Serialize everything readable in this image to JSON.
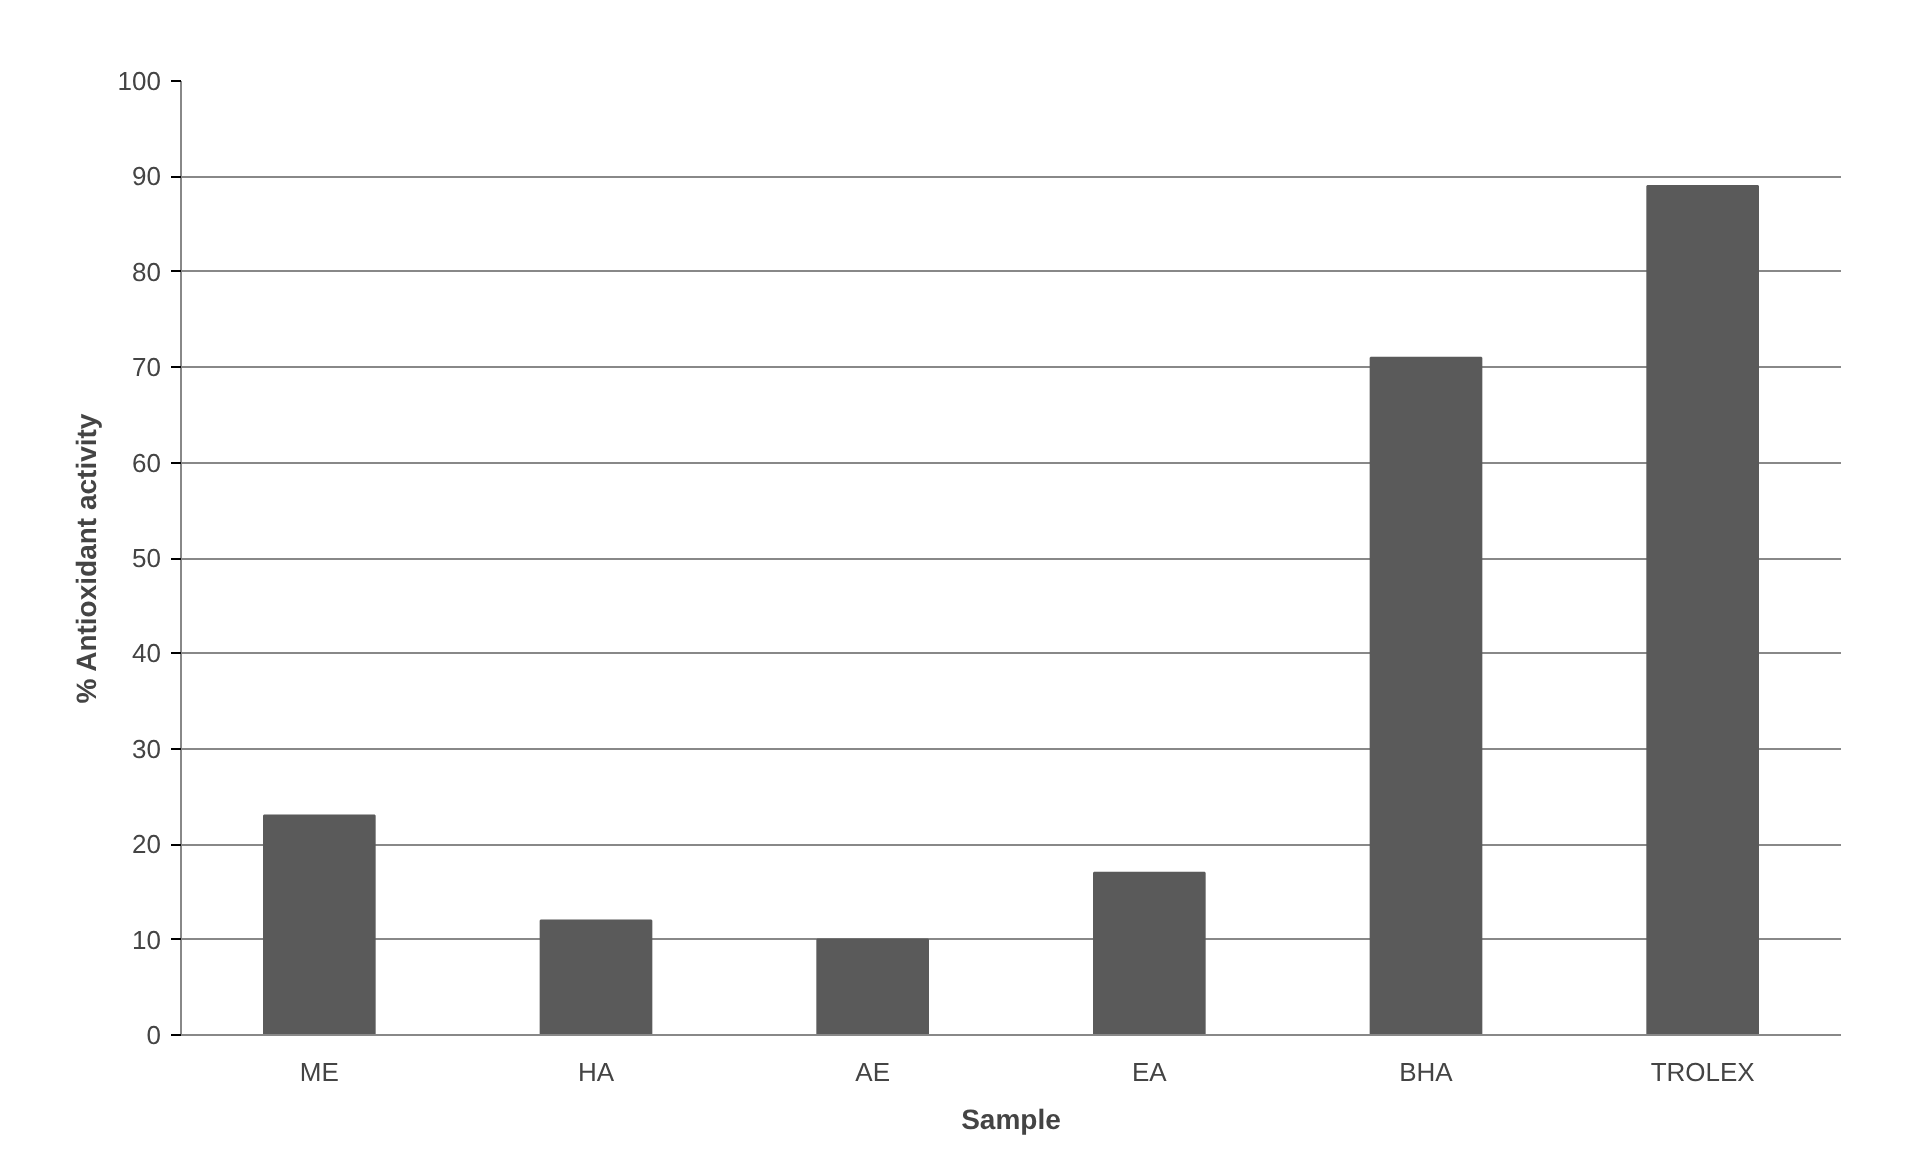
{
  "chart_data": {
    "type": "bar",
    "xlabel": "Sample",
    "ylabel": "% Antioxidant activity",
    "categories": [
      "ME",
      "HA",
      "AE",
      "EA",
      "BHA",
      "TROLEX"
    ],
    "values": [
      23,
      12,
      10,
      17,
      71,
      89
    ],
    "color": "#5a5a5a",
    "ylim": [
      0,
      100
    ],
    "yticks": [
      0,
      10,
      20,
      30,
      40,
      50,
      60,
      70,
      80,
      90,
      100
    ],
    "grid": "y"
  }
}
